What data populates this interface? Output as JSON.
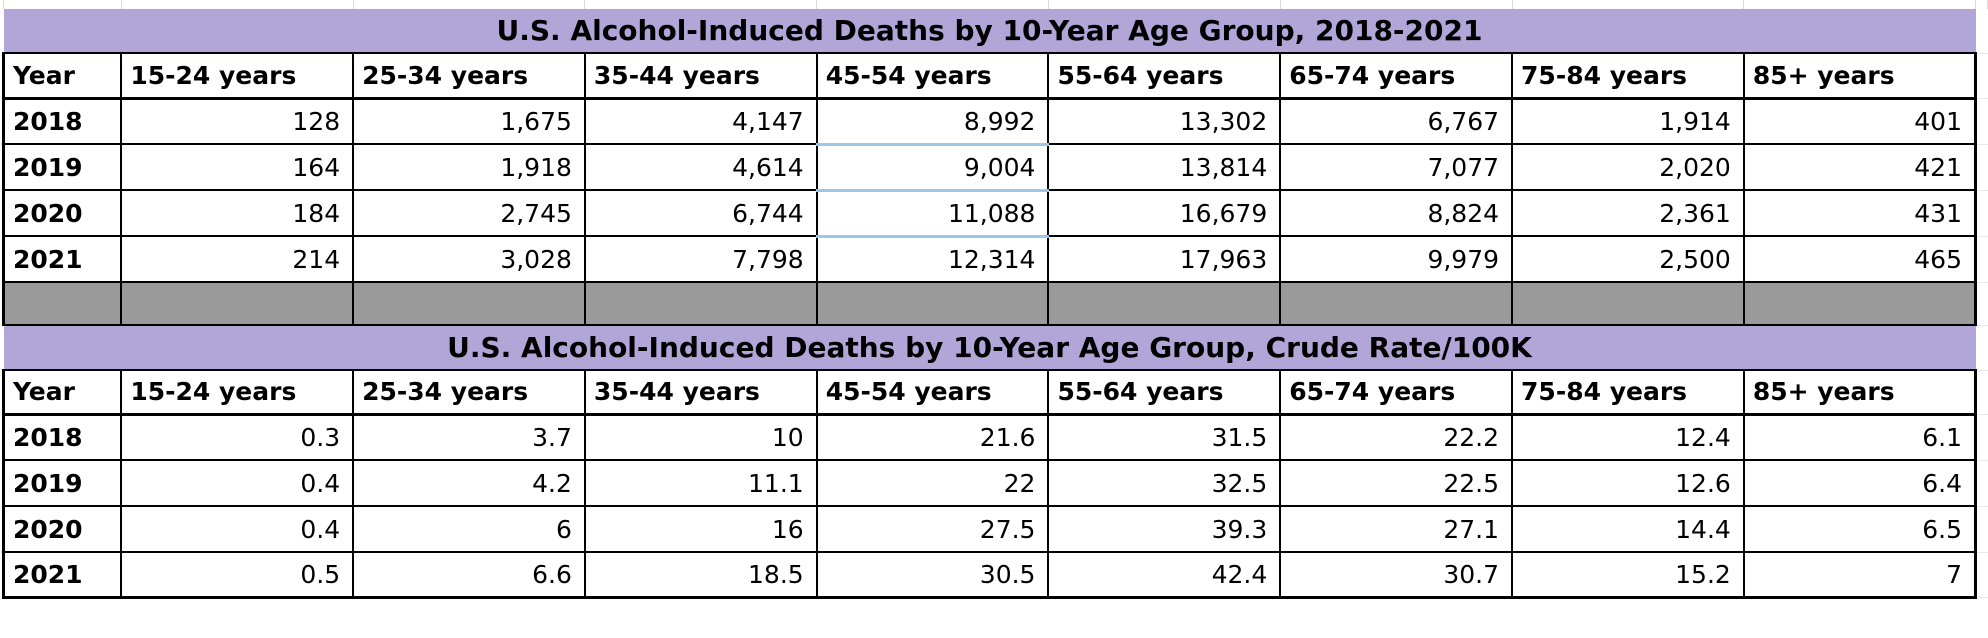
{
  "colors": {
    "title_bg": "#B2A6D9",
    "separator_row_bg": "#9A9A9A",
    "linked_cell_border": "#9FC5E8",
    "cell_border": "#000000",
    "faint_gridline": "#D9D9D9",
    "background": "#FFFFFF",
    "text": "#000000"
  },
  "chart_data": [
    {
      "type": "table",
      "title": "U.S. Alcohol-Induced Deaths by 10-Year Age Group, 2018-2021",
      "columns": [
        "Year",
        "15-24 years",
        "25-34 years",
        "35-44 years",
        "45-54 years",
        "55-64 years",
        "65-74 years",
        "75-84 years",
        "85+ years"
      ],
      "rows": [
        [
          "2018",
          "128",
          "1,675",
          "4,147",
          "8,992",
          "13,302",
          "6,767",
          "1,914",
          "401"
        ],
        [
          "2019",
          "164",
          "1,918",
          "4,614",
          "9,004",
          "13,814",
          "7,077",
          "2,020",
          "421"
        ],
        [
          "2020",
          "184",
          "2,745",
          "6,744",
          "11,088",
          "16,679",
          "8,824",
          "2,361",
          "431"
        ],
        [
          "2021",
          "214",
          "3,028",
          "7,798",
          "12,314",
          "17,963",
          "9,979",
          "2,500",
          "465"
        ]
      ],
      "highlighted_column": "45-54 years",
      "highlight_note": "light blue cell borders between year rows in 45-54 column"
    },
    {
      "type": "table",
      "title": "U.S. Alcohol-Induced Deaths by 10-Year Age Group, Crude Rate/100K",
      "columns": [
        "Year",
        "15-24 years",
        "25-34 years",
        "35-44 years",
        "45-54 years",
        "55-64 years",
        "65-74 years",
        "75-84 years",
        "85+ years"
      ],
      "rows": [
        [
          "2018",
          "0.3",
          "3.7",
          "10",
          "21.6",
          "31.5",
          "22.2",
          "12.4",
          "6.1"
        ],
        [
          "2019",
          "0.4",
          "4.2",
          "11.1",
          "22",
          "32.5",
          "22.5",
          "12.6",
          "6.4"
        ],
        [
          "2020",
          "0.4",
          "6",
          "16",
          "27.5",
          "39.3",
          "27.1",
          "14.4",
          "6.5"
        ],
        [
          "2021",
          "0.5",
          "6.6",
          "18.5",
          "30.5",
          "42.4",
          "30.7",
          "15.2",
          "7"
        ]
      ]
    }
  ]
}
